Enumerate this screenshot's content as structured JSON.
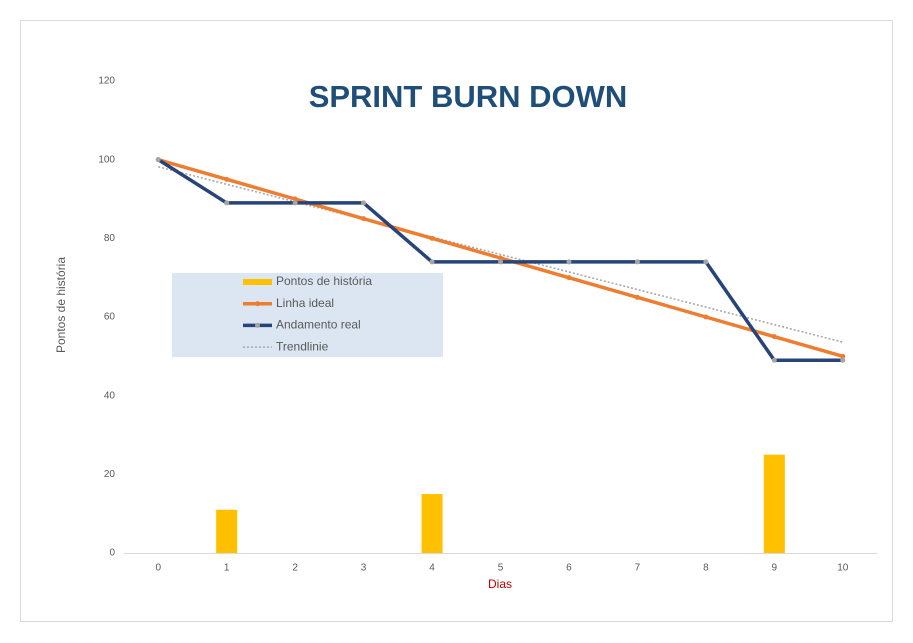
{
  "chart_data": {
    "type": "burndown",
    "title": "SPRINT BURN DOWN",
    "x_label": "Dias",
    "y_label": "Pontos de história",
    "categories": [
      "0",
      "1",
      "2",
      "3",
      "4",
      "5",
      "6",
      "7",
      "8",
      "9",
      "10"
    ],
    "ylim": [
      0,
      120
    ],
    "yticks": [
      0,
      20,
      40,
      60,
      80,
      100,
      120
    ],
    "series": [
      {
        "name": "Pontos de história",
        "kind": "bar",
        "color": "#ffc000",
        "values": [
          0,
          11,
          0,
          0,
          15,
          0,
          0,
          0,
          0,
          25,
          0
        ]
      },
      {
        "name": "Linha ideal",
        "kind": "line",
        "color": "#ed7d31",
        "values": [
          100,
          95,
          90,
          85,
          80,
          75,
          70,
          65,
          60,
          55,
          50
        ]
      },
      {
        "name": "Andamento real",
        "kind": "line",
        "color": "#264478",
        "marker_color": "#a5a5a5",
        "values": [
          100,
          89,
          89,
          89,
          74,
          74,
          74,
          74,
          74,
          49,
          49
        ]
      },
      {
        "name": "Trendlinie",
        "kind": "trend",
        "color": "#a5a5a5",
        "x": [
          0,
          10
        ],
        "values": [
          98.2,
          53.6
        ]
      }
    ],
    "legend": "left"
  }
}
